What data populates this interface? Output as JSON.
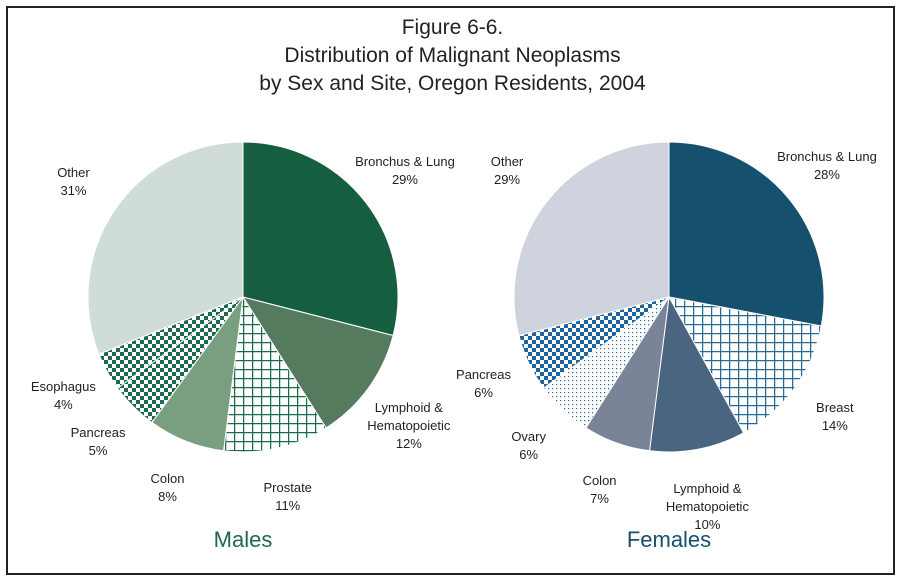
{
  "title": [
    "Figure 6-6.",
    "Distribution of Malignant Neoplasms",
    "by Sex and Site, Oregon Residents, 2004"
  ],
  "chart_data": [
    {
      "type": "pie",
      "title": "Males",
      "title_color": "#1d6a4c",
      "categories": [
        "Bronchus & Lung",
        "Lymphoid &\nHematopoietic",
        "Prostate",
        "Colon",
        "Pancreas",
        "Esophagus",
        "Other"
      ],
      "values": [
        29,
        12,
        11,
        8,
        5,
        4,
        31
      ],
      "value_labels": [
        "29%",
        "12%",
        "11%",
        "8%",
        "5%",
        "4%",
        "31%"
      ],
      "colors": [
        "#155e3f",
        "#567a5e",
        "#1d6a4c",
        "#7a9f80",
        "#1d6a4c",
        "#1d6a4c",
        "#cfdcd9"
      ],
      "patterns": [
        "solid",
        "solid",
        "grid",
        "solid",
        "checker",
        "checker",
        "solid"
      ]
    },
    {
      "type": "pie",
      "title": "Females",
      "title_color": "#15506e",
      "categories": [
        "Bronchus & Lung",
        "Breast",
        "Lymphoid & Hematopoietic",
        "Colon",
        "Ovary",
        "Pancreas",
        "Other"
      ],
      "values": [
        28,
        14,
        10,
        7,
        6,
        6,
        29
      ],
      "value_labels": [
        "28%",
        "14%",
        "10%",
        "7%",
        "6%",
        "6%",
        "29%"
      ],
      "colors": [
        "#15506e",
        "#2a6a90",
        "#4a6580",
        "#7a8499",
        "#2a6a90",
        "#1d64a0",
        "#ced3de"
      ],
      "patterns": [
        "solid",
        "grid",
        "solid",
        "solid",
        "dots",
        "checker",
        "solid"
      ]
    }
  ]
}
